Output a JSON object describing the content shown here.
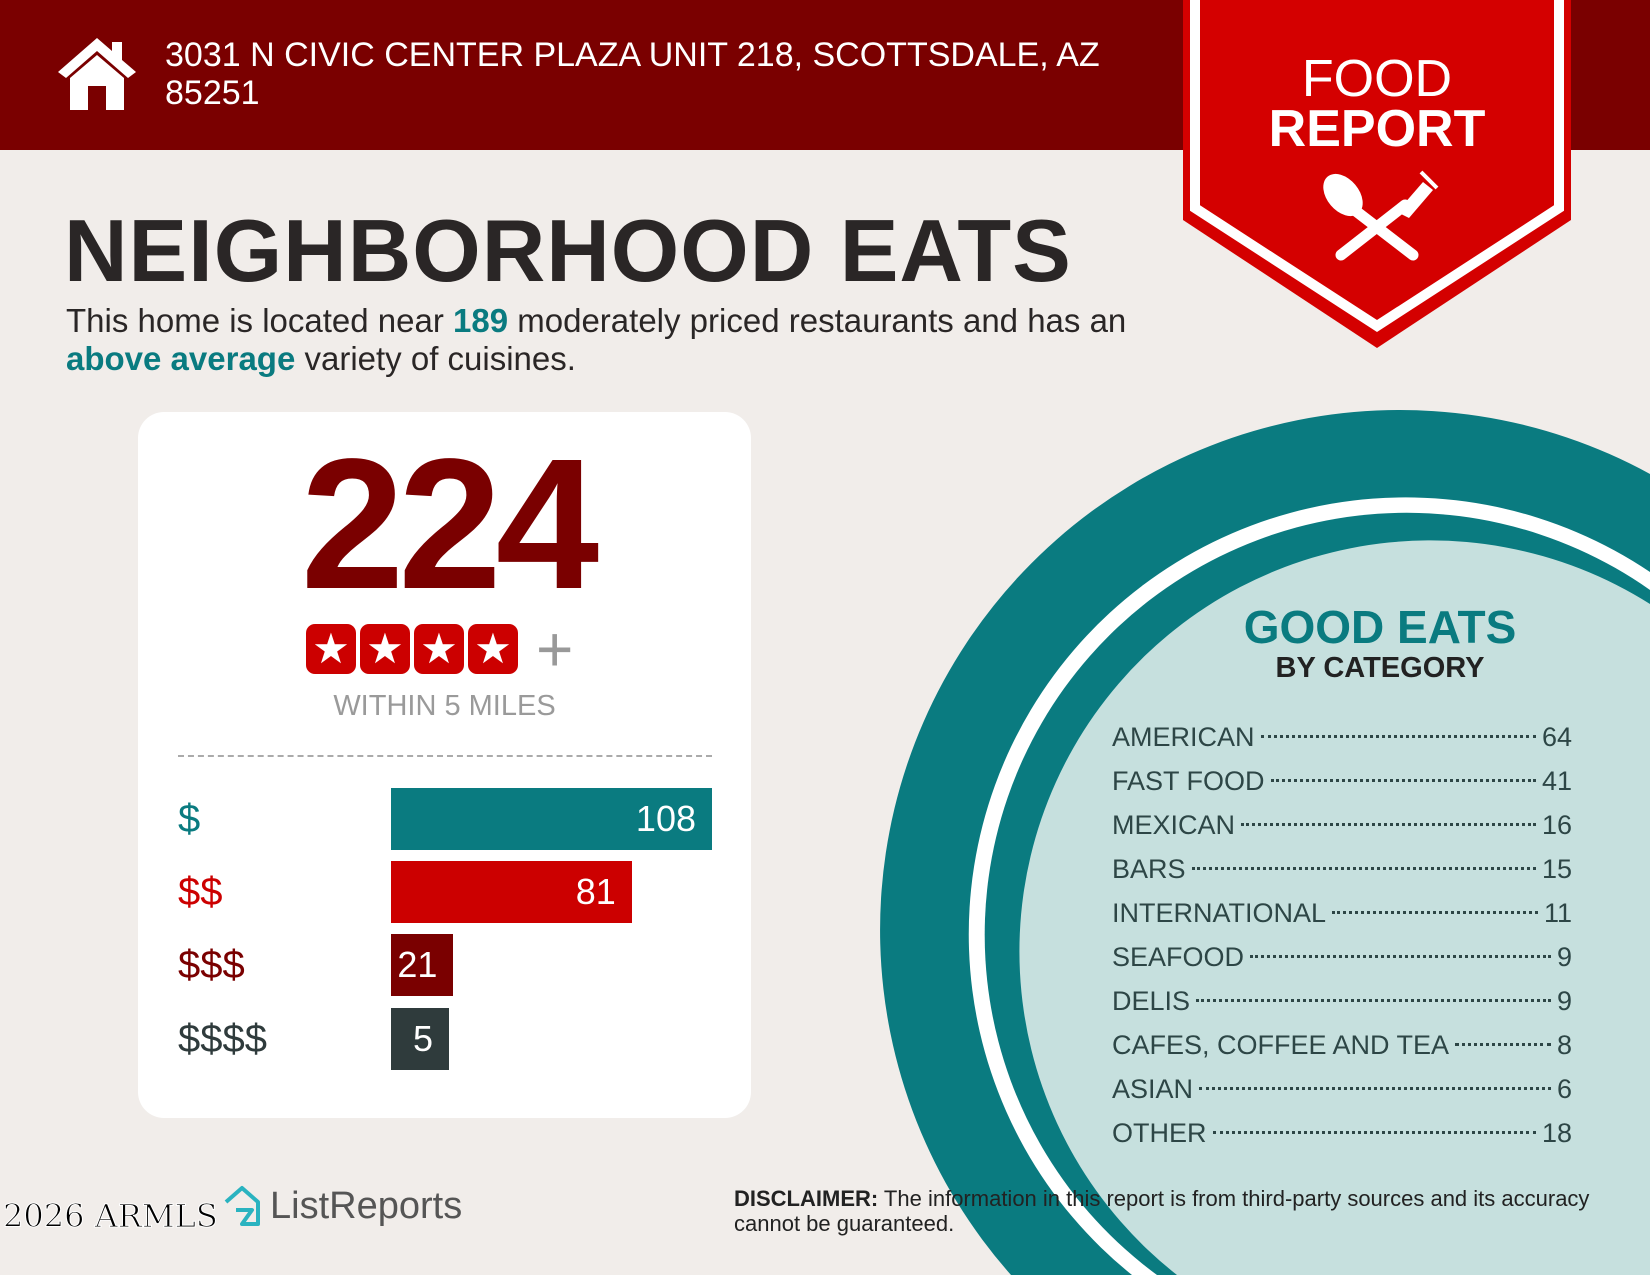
{
  "header": {
    "address": "3031 N CIVIC CENTER PLAZA UNIT 218, SCOTTSDALE, AZ 85251",
    "icon": "house-icon"
  },
  "banner": {
    "line1": "FOOD",
    "line2": "REPORT",
    "icon": "spoon-fork-icon"
  },
  "title": "NEIGHBORHOOD EATS",
  "summary": {
    "pre": "This home is located near ",
    "count": "189",
    "mid": " moderately priced restaurants and has an ",
    "variety": "above average",
    "post": " variety of cuisines."
  },
  "card": {
    "total": "224",
    "stars": 4,
    "plus": "+",
    "within": "WITHIN 5 MILES",
    "tiers": [
      {
        "label": "$",
        "value": 108,
        "color": "#0a7b80"
      },
      {
        "label": "$$",
        "value": 81,
        "color": "#cc0000"
      },
      {
        "label": "$$$",
        "value": 21,
        "color": "#7a0000"
      },
      {
        "label": "$$$$",
        "value": 5,
        "color": "#2f3b3c"
      }
    ]
  },
  "good_eats": {
    "title": "GOOD EATS",
    "subtitle": "BY CATEGORY",
    "categories": [
      {
        "name": "AMERICAN",
        "count": "64"
      },
      {
        "name": "FAST FOOD",
        "count": "41"
      },
      {
        "name": "MEXICAN",
        "count": "16"
      },
      {
        "name": "BARS",
        "count": "15"
      },
      {
        "name": "INTERNATIONAL",
        "count": "11"
      },
      {
        "name": "SEAFOOD",
        "count": "9"
      },
      {
        "name": "DELIS",
        "count": "9"
      },
      {
        "name": "CAFES, COFFEE AND TEA",
        "count": "8"
      },
      {
        "name": "ASIAN",
        "count": "6"
      },
      {
        "name": "OTHER",
        "count": "18"
      }
    ]
  },
  "disclaimer": {
    "label": "DISCLAIMER:",
    "text": " The information in this report is from third-party sources and its accuracy cannot be guaranteed."
  },
  "footer": {
    "logo": "ListReports",
    "watermark": "2026 ARMLS"
  },
  "colors": {
    "teal": "#0a7b80",
    "dark_red": "#7a0000",
    "red": "#cc0000",
    "background": "#f1edea",
    "light_teal": "#c6e0de"
  }
}
